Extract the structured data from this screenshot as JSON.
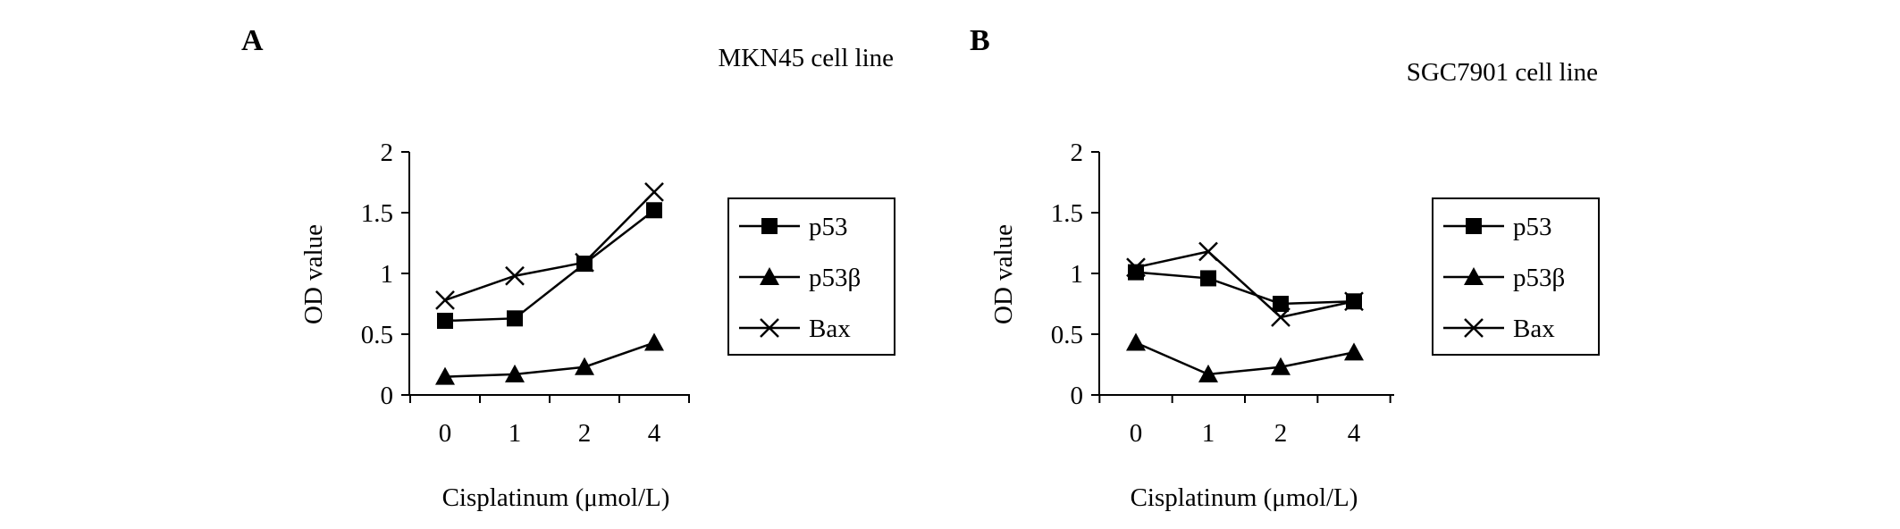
{
  "chart_data": [
    {
      "panel_label": "A",
      "type": "line",
      "title": "MKN45 cell line",
      "xlabel": "Cisplatinum (μmol/L)",
      "ylabel": "OD value",
      "categories": [
        "0",
        "1",
        "2",
        "4"
      ],
      "ylim": [
        0,
        2
      ],
      "yticks": [
        "0",
        "0.5",
        "1",
        "1.5",
        "2"
      ],
      "grid": false,
      "legend": "right",
      "series": [
        {
          "name": "p53",
          "marker": "square",
          "values": [
            0.61,
            0.63,
            1.08,
            1.52
          ]
        },
        {
          "name": "p53β",
          "marker": "triangle",
          "values": [
            0.15,
            0.17,
            0.23,
            0.43
          ]
        },
        {
          "name": "Bax",
          "marker": "x",
          "values": [
            0.78,
            0.98,
            1.09,
            1.67
          ]
        }
      ]
    },
    {
      "panel_label": "B",
      "type": "line",
      "title": "SGC7901 cell line",
      "xlabel": "Cisplatinum (μmol/L)",
      "ylabel": "OD value",
      "categories": [
        "0",
        "1",
        "2",
        "4"
      ],
      "ylim": [
        0,
        2
      ],
      "yticks": [
        "0",
        "0.5",
        "1",
        "1.5",
        "2"
      ],
      "grid": false,
      "legend": "right",
      "series": [
        {
          "name": "p53",
          "marker": "square",
          "values": [
            1.01,
            0.96,
            0.75,
            0.77
          ]
        },
        {
          "name": "p53β",
          "marker": "triangle",
          "values": [
            0.43,
            0.17,
            0.23,
            0.35
          ]
        },
        {
          "name": "Bax",
          "marker": "x",
          "values": [
            1.05,
            1.18,
            0.64,
            0.77
          ]
        }
      ]
    }
  ]
}
